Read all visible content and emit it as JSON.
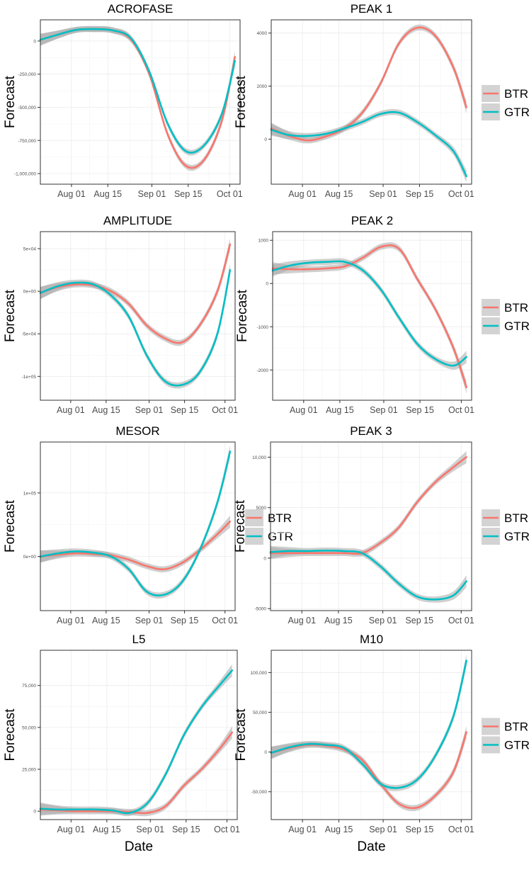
{
  "colors": {
    "BTR": "#F8766D",
    "GTR": "#00BFC4",
    "ribbon": "#A8A8A8"
  },
  "legend": {
    "entries": [
      "BTR",
      "GTR"
    ]
  },
  "chart_data": [
    {
      "type": "line",
      "title": "ACROFASE",
      "ylabel": "Forecast",
      "xlabel": "",
      "x_ticks": [
        "Aug 01",
        "Aug 15",
        "Sep 01",
        "Sep 15",
        "Oct 01"
      ],
      "y_ticks": [
        0,
        -250000,
        -500000,
        -750000,
        -1000000
      ],
      "y_tick_labels": [
        "0",
        "-250,000",
        "-500,000",
        "-750,000",
        "-1,000,000"
      ],
      "ylim": [
        -1080000,
        160000
      ],
      "legend": false,
      "series": [
        {
          "name": "BTR",
          "x": [
            "07-20",
            "07-27",
            "08-03",
            "08-10",
            "08-17",
            "08-24",
            "08-31",
            "09-07",
            "09-14",
            "09-21",
            "09-28",
            "10-03"
          ],
          "y": [
            10000,
            50000,
            85000,
            90000,
            80000,
            10000,
            -250000,
            -700000,
            -940000,
            -900000,
            -600000,
            -120000
          ]
        },
        {
          "name": "GTR",
          "x": [
            "07-20",
            "07-27",
            "08-03",
            "08-10",
            "08-17",
            "08-24",
            "08-31",
            "09-07",
            "09-14",
            "09-21",
            "09-28",
            "10-03"
          ],
          "y": [
            10000,
            50000,
            85000,
            90000,
            80000,
            20000,
            -230000,
            -620000,
            -830000,
            -790000,
            -550000,
            -150000
          ]
        }
      ]
    },
    {
      "type": "line",
      "title": "PEAK 1",
      "ylabel": "Forecast",
      "xlabel": "",
      "x_ticks": [
        "Aug 01",
        "Aug 15",
        "Sep 01",
        "Sep 15",
        "Oct 01"
      ],
      "y_ticks": [
        0,
        2000,
        4000
      ],
      "y_tick_labels": [
        "0",
        "2000",
        "4000"
      ],
      "ylim": [
        -1700,
        4500
      ],
      "legend": true,
      "series": [
        {
          "name": "BTR",
          "x": [
            "07-20",
            "07-27",
            "08-03",
            "08-10",
            "08-17",
            "08-24",
            "08-31",
            "09-07",
            "09-14",
            "09-21",
            "09-28",
            "10-03"
          ],
          "y": [
            400,
            120,
            -50,
            100,
            400,
            1000,
            2100,
            3600,
            4200,
            3900,
            2700,
            1200
          ]
        },
        {
          "name": "GTR",
          "x": [
            "07-20",
            "07-27",
            "08-03",
            "08-10",
            "08-17",
            "08-24",
            "08-31",
            "09-07",
            "09-14",
            "09-21",
            "09-28",
            "10-03"
          ],
          "y": [
            350,
            150,
            120,
            200,
            400,
            650,
            950,
            1000,
            650,
            150,
            -450,
            -1400
          ]
        }
      ]
    },
    {
      "type": "line",
      "title": "AMPLITUDE",
      "ylabel": "Forecast",
      "xlabel": "",
      "x_ticks": [
        "Aug 01",
        "Aug 15",
        "Sep 01",
        "Sep 15",
        "Oct 01"
      ],
      "y_ticks": [
        50000,
        0,
        -50000,
        -100000
      ],
      "y_tick_labels": [
        "5e+04",
        "0e+00",
        "-5e+04",
        "-1e+05"
      ],
      "ylim": [
        -128000,
        70000
      ],
      "legend": false,
      "series": [
        {
          "name": "BTR",
          "x": [
            "07-20",
            "07-27",
            "08-03",
            "08-10",
            "08-17",
            "08-24",
            "08-31",
            "09-07",
            "09-14",
            "09-21",
            "09-28",
            "10-03"
          ],
          "y": [
            -2000,
            5000,
            8000,
            7000,
            0,
            -15000,
            -40000,
            -55000,
            -60000,
            -40000,
            0,
            55000
          ]
        },
        {
          "name": "GTR",
          "x": [
            "07-20",
            "07-27",
            "08-03",
            "08-10",
            "08-17",
            "08-24",
            "08-31",
            "09-07",
            "09-14",
            "09-21",
            "09-28",
            "10-03"
          ],
          "y": [
            -2000,
            6000,
            10000,
            8000,
            -5000,
            -30000,
            -75000,
            -105000,
            -110000,
            -95000,
            -50000,
            25000
          ]
        }
      ]
    },
    {
      "type": "line",
      "title": "PEAK 2",
      "ylabel": "Forecast",
      "xlabel": "",
      "x_ticks": [
        "Aug 01",
        "Aug 15",
        "Sep 01",
        "Sep 15",
        "Oct 01"
      ],
      "y_ticks": [
        1000,
        0,
        -1000,
        -2000
      ],
      "y_tick_labels": [
        "1000",
        "0",
        "-1000",
        "-2000"
      ],
      "ylim": [
        -2700,
        1200
      ],
      "legend": true,
      "series": [
        {
          "name": "BTR",
          "x": [
            "07-20",
            "07-27",
            "08-03",
            "08-10",
            "08-17",
            "08-24",
            "08-31",
            "09-07",
            "09-14",
            "09-21",
            "09-28",
            "10-03"
          ],
          "y": [
            350,
            330,
            330,
            350,
            400,
            600,
            850,
            800,
            100,
            -600,
            -1500,
            -2400
          ]
        },
        {
          "name": "GTR",
          "x": [
            "07-20",
            "07-27",
            "08-03",
            "08-10",
            "08-17",
            "08-24",
            "08-31",
            "09-07",
            "09-14",
            "09-21",
            "09-28",
            "10-03"
          ],
          "y": [
            300,
            420,
            480,
            500,
            500,
            300,
            -150,
            -800,
            -1400,
            -1750,
            -1900,
            -1700
          ]
        }
      ]
    },
    {
      "type": "line",
      "title": "MESOR",
      "ylabel": "Forecast",
      "xlabel": "",
      "x_ticks": [
        "Aug 01",
        "Aug 15",
        "Sep 01",
        "Sep 15",
        "Oct 01"
      ],
      "y_ticks": [
        0,
        100000
      ],
      "y_tick_labels": [
        "0e+00",
        "1e+05"
      ],
      "ylim": [
        -85000,
        180000
      ],
      "legend": true,
      "series": [
        {
          "name": "BTR",
          "x": [
            "07-20",
            "07-27",
            "08-03",
            "08-10",
            "08-17",
            "08-24",
            "08-31",
            "09-07",
            "09-14",
            "09-21",
            "09-28",
            "10-03"
          ],
          "y": [
            0,
            3000,
            5000,
            4000,
            2000,
            -5000,
            -15000,
            -20000,
            -10000,
            10000,
            35000,
            55000
          ]
        },
        {
          "name": "GTR",
          "x": [
            "07-20",
            "07-27",
            "08-03",
            "08-10",
            "08-17",
            "08-24",
            "08-31",
            "09-07",
            "09-14",
            "09-21",
            "09-28",
            "10-03"
          ],
          "y": [
            0,
            5000,
            8000,
            6000,
            0,
            -20000,
            -55000,
            -60000,
            -40000,
            10000,
            85000,
            165000
          ]
        }
      ]
    },
    {
      "type": "line",
      "title": "PEAK 3",
      "ylabel": "Forecast",
      "xlabel": "",
      "x_ticks": [
        "Aug 01",
        "Aug 15",
        "Sep 01",
        "Sep 15",
        "Oct 01"
      ],
      "y_ticks": [
        10000,
        5000,
        0,
        -5000
      ],
      "y_tick_labels": [
        "10,000",
        "5000",
        "0",
        "-5000"
      ],
      "ylim": [
        -5200,
        11500
      ],
      "legend": true,
      "series": [
        {
          "name": "BTR",
          "x": [
            "07-20",
            "07-27",
            "08-03",
            "08-10",
            "08-17",
            "08-24",
            "08-31",
            "09-07",
            "09-14",
            "09-21",
            "09-28",
            "10-03"
          ],
          "y": [
            500,
            500,
            500,
            500,
            500,
            500,
            1500,
            3000,
            5500,
            7500,
            9000,
            10000
          ]
        },
        {
          "name": "GTR",
          "x": [
            "07-20",
            "07-27",
            "08-03",
            "08-10",
            "08-17",
            "08-24",
            "08-31",
            "09-07",
            "09-14",
            "09-21",
            "09-28",
            "10-03"
          ],
          "y": [
            600,
            700,
            700,
            750,
            700,
            500,
            -800,
            -2500,
            -3800,
            -4100,
            -3700,
            -2300
          ]
        }
      ]
    },
    {
      "type": "line",
      "title": "L5",
      "ylabel": "Forecast",
      "xlabel": "Date",
      "x_ticks": [
        "Aug 01",
        "Aug 15",
        "Sep 01",
        "Sep 15",
        "Oct 01"
      ],
      "y_ticks": [
        0,
        25000,
        50000,
        75000
      ],
      "y_tick_labels": [
        "0",
        "25,000",
        "50,000",
        "75,000"
      ],
      "ylim": [
        -5000,
        96000
      ],
      "legend": false,
      "series": [
        {
          "name": "BTR",
          "x": [
            "07-20",
            "07-27",
            "08-03",
            "08-10",
            "08-17",
            "08-24",
            "08-31",
            "09-07",
            "09-14",
            "09-21",
            "09-28",
            "10-03"
          ],
          "y": [
            1000,
            500,
            0,
            0,
            0,
            -500,
            -1000,
            3000,
            15000,
            25000,
            37000,
            47000
          ]
        },
        {
          "name": "GTR",
          "x": [
            "07-20",
            "07-27",
            "08-03",
            "08-10",
            "08-17",
            "08-24",
            "08-31",
            "09-07",
            "09-14",
            "09-21",
            "09-28",
            "10-03"
          ],
          "y": [
            1500,
            1000,
            1000,
            1000,
            500,
            -1000,
            5000,
            22000,
            45000,
            62000,
            75000,
            84000
          ]
        }
      ]
    },
    {
      "type": "line",
      "title": "M10",
      "ylabel": "Forecast",
      "xlabel": "Date",
      "x_ticks": [
        "Aug 01",
        "Aug 15",
        "Sep 01",
        "Sep 15",
        "Oct 01"
      ],
      "y_ticks": [
        100000,
        50000,
        0,
        -50000
      ],
      "y_tick_labels": [
        "100,000",
        "50,000",
        "0",
        "-50,000"
      ],
      "ylim": [
        -85000,
        128000
      ],
      "legend": true,
      "series": [
        {
          "name": "BTR",
          "x": [
            "07-20",
            "07-27",
            "08-03",
            "08-10",
            "08-17",
            "08-24",
            "08-31",
            "09-07",
            "09-14",
            "09-21",
            "09-28",
            "10-03"
          ],
          "y": [
            -1000,
            5000,
            9000,
            8000,
            3000,
            -10000,
            -40000,
            -65000,
            -70000,
            -55000,
            -25000,
            25000
          ]
        },
        {
          "name": "GTR",
          "x": [
            "07-20",
            "07-27",
            "08-03",
            "08-10",
            "08-17",
            "08-24",
            "08-31",
            "09-07",
            "09-14",
            "09-21",
            "09-28",
            "10-03"
          ],
          "y": [
            -1000,
            6000,
            10000,
            9000,
            5000,
            -15000,
            -40000,
            -45000,
            -35000,
            -5000,
            45000,
            115000
          ]
        }
      ]
    }
  ]
}
